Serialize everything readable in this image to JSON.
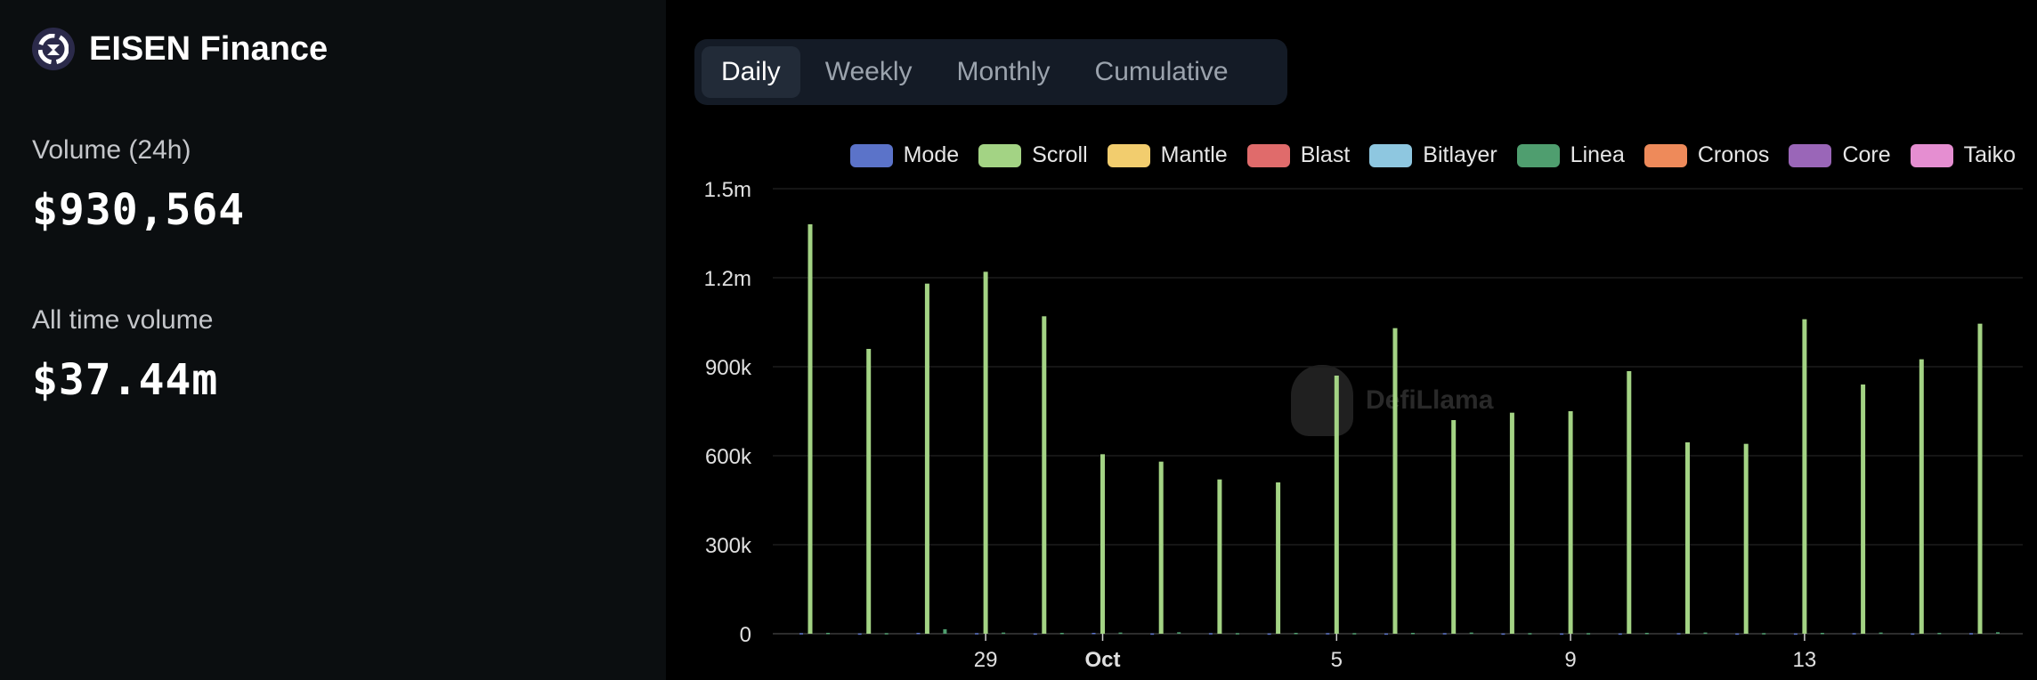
{
  "brand": {
    "name": "EISEN Finance",
    "logo_icon": "eisen-logo-icon"
  },
  "stats": {
    "volume_label": "Volume (24h)",
    "volume_value": "$930,564",
    "alltime_label": "All time volume",
    "alltime_value": "$37.44m"
  },
  "tabs": [
    {
      "label": "Daily",
      "active": true
    },
    {
      "label": "Weekly",
      "active": false
    },
    {
      "label": "Monthly",
      "active": false
    },
    {
      "label": "Cumulative",
      "active": false
    }
  ],
  "watermark": "DefiLlama",
  "chart_data": {
    "type": "bar",
    "grid": true,
    "legend_position": "top-right",
    "ylim": [
      0,
      1500000
    ],
    "yticks": [
      "0",
      "300k",
      "600k",
      "900k",
      "1.2m",
      "1.5m"
    ],
    "ytick_values": [
      0,
      300000,
      600000,
      900000,
      1200000,
      1500000
    ],
    "xticks": [
      {
        "label": "29",
        "index": 3,
        "bold": false
      },
      {
        "label": "Oct",
        "index": 5,
        "bold": true
      },
      {
        "label": "5",
        "index": 9,
        "bold": false
      },
      {
        "label": "9",
        "index": 13,
        "bold": false
      },
      {
        "label": "13",
        "index": 17,
        "bold": false
      }
    ],
    "categories": [
      "Sep 26",
      "Sep 27",
      "Sep 28",
      "Sep 29",
      "Sep 30",
      "Oct 1",
      "Oct 2",
      "Oct 3",
      "Oct 4",
      "Oct 5",
      "Oct 6",
      "Oct 7",
      "Oct 8",
      "Oct 9",
      "Oct 10",
      "Oct 11",
      "Oct 12",
      "Oct 13",
      "Oct 14",
      "Oct 15",
      "Oct 16"
    ],
    "series": [
      {
        "name": "Mode",
        "color": "#5b73c9",
        "values": [
          2000,
          1000,
          3000,
          2000,
          1000,
          3000,
          1000,
          2000,
          1000,
          2000,
          1000,
          2000,
          1000,
          1000,
          1000,
          2000,
          1000,
          1000,
          2000,
          1000,
          2000
        ]
      },
      {
        "name": "Scroll",
        "color": "#a3d384",
        "values": [
          1380000,
          960000,
          1180000,
          1220000,
          1070000,
          605000,
          580000,
          520000,
          510000,
          870000,
          1030000,
          720000,
          745000,
          750000,
          885000,
          645000,
          640000,
          1060000,
          840000,
          925000,
          1045000
        ]
      },
      {
        "name": "Mantle",
        "color": "#f2cd6e",
        "values": [
          0,
          0,
          0,
          0,
          0,
          0,
          0,
          0,
          0,
          0,
          0,
          0,
          0,
          0,
          0,
          0,
          0,
          0,
          0,
          0,
          0
        ]
      },
      {
        "name": "Blast",
        "color": "#e06b6b",
        "values": [
          0,
          0,
          0,
          0,
          0,
          0,
          0,
          0,
          0,
          0,
          0,
          0,
          0,
          0,
          0,
          0,
          0,
          0,
          0,
          0,
          0
        ]
      },
      {
        "name": "Bitlayer",
        "color": "#8ec7e0",
        "values": [
          0,
          0,
          0,
          0,
          0,
          0,
          0,
          0,
          0,
          0,
          0,
          0,
          0,
          0,
          0,
          0,
          0,
          0,
          0,
          0,
          0
        ]
      },
      {
        "name": "Linea",
        "color": "#4f9e6f",
        "values": [
          3000,
          2000,
          15000,
          4000,
          3000,
          4000,
          5000,
          2000,
          3000,
          2000,
          3000,
          4000,
          2000,
          2000,
          3000,
          4000,
          2000,
          3000,
          4000,
          3000,
          5000
        ]
      },
      {
        "name": "Cronos",
        "color": "#ee8a5a",
        "values": [
          0,
          0,
          0,
          0,
          0,
          0,
          0,
          0,
          0,
          0,
          0,
          0,
          0,
          0,
          0,
          0,
          0,
          0,
          0,
          0,
          0
        ]
      },
      {
        "name": "Core",
        "color": "#9a66b8",
        "values": [
          0,
          0,
          0,
          0,
          0,
          0,
          0,
          0,
          0,
          0,
          0,
          0,
          0,
          0,
          0,
          0,
          0,
          0,
          0,
          0,
          0
        ]
      },
      {
        "name": "Taiko",
        "color": "#e58ed1",
        "values": [
          0,
          0,
          0,
          0,
          0,
          0,
          0,
          0,
          0,
          0,
          0,
          0,
          0,
          0,
          0,
          0,
          0,
          0,
          0,
          0,
          0
        ]
      }
    ]
  }
}
